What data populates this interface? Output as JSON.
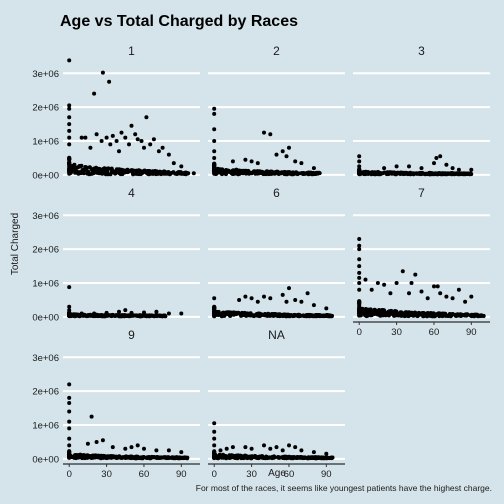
{
  "chart_data": {
    "type": "scatter",
    "title": "Age vs Total Charged by Races",
    "xlabel": "Age",
    "ylabel": "Total Charged",
    "caption": "For most of the races, it seems like youngest patients have the highest charge.",
    "xlim": [
      -5,
      105
    ],
    "ylim": [
      -150000,
      3450000
    ],
    "x_ticks": [
      0,
      30,
      60,
      90
    ],
    "y_ticks": [
      0,
      1000000,
      2000000,
      3000000
    ],
    "y_tick_labels": [
      "0e+00",
      "1e+06",
      "2e+06",
      "3e+06"
    ],
    "grid": "horizontal major lines",
    "facets": [
      {
        "label": "1",
        "cluster": {
          "x_max": 96,
          "y_base": 300000,
          "y_decay": 60
        },
        "points": [
          [
            0,
            3380000
          ],
          [
            0,
            2050000
          ],
          [
            0,
            1950000
          ],
          [
            0,
            1700000
          ],
          [
            0,
            1500000
          ],
          [
            0,
            1300000
          ],
          [
            0,
            1100000
          ],
          [
            0,
            900000
          ],
          [
            20,
            2400000
          ],
          [
            27,
            3020000
          ],
          [
            32,
            2750000
          ],
          [
            10,
            1100000
          ],
          [
            13,
            1100000
          ],
          [
            17,
            800000
          ],
          [
            22,
            1200000
          ],
          [
            26,
            1000000
          ],
          [
            30,
            1100000
          ],
          [
            33,
            900000
          ],
          [
            35,
            1150000
          ],
          [
            38,
            1000000
          ],
          [
            40,
            700000
          ],
          [
            42,
            1250000
          ],
          [
            45,
            1100000
          ],
          [
            48,
            900000
          ],
          [
            50,
            1450000
          ],
          [
            53,
            1200000
          ],
          [
            55,
            1050000
          ],
          [
            58,
            1000000
          ],
          [
            60,
            800000
          ],
          [
            62,
            1700000
          ],
          [
            65,
            900000
          ],
          [
            68,
            1050000
          ],
          [
            72,
            700000
          ],
          [
            75,
            800000
          ],
          [
            80,
            600000
          ],
          [
            84,
            350000
          ],
          [
            90,
            250000
          ],
          [
            100,
            50000
          ]
        ]
      },
      {
        "label": "2",
        "cluster": {
          "x_max": 85,
          "y_base": 180000,
          "y_decay": 60
        },
        "points": [
          [
            0,
            1950000
          ],
          [
            0,
            1800000
          ],
          [
            0,
            1350000
          ],
          [
            0,
            1000000
          ],
          [
            0,
            700000
          ],
          [
            0,
            500000
          ],
          [
            15,
            400000
          ],
          [
            25,
            450000
          ],
          [
            30,
            400000
          ],
          [
            35,
            350000
          ],
          [
            40,
            1250000
          ],
          [
            45,
            1200000
          ],
          [
            50,
            600000
          ],
          [
            55,
            700000
          ],
          [
            58,
            550000
          ],
          [
            60,
            800000
          ],
          [
            65,
            400000
          ],
          [
            70,
            350000
          ],
          [
            80,
            200000
          ]
        ]
      },
      {
        "label": "3",
        "cluster": {
          "x_max": 90,
          "y_base": 80000,
          "y_decay": 80
        },
        "points": [
          [
            0,
            550000
          ],
          [
            0,
            400000
          ],
          [
            0,
            250000
          ],
          [
            20,
            200000
          ],
          [
            30,
            250000
          ],
          [
            40,
            250000
          ],
          [
            50,
            200000
          ],
          [
            60,
            350000
          ],
          [
            62,
            500000
          ],
          [
            65,
            550000
          ],
          [
            70,
            300000
          ],
          [
            75,
            200000
          ],
          [
            80,
            150000
          ],
          [
            90,
            150000
          ]
        ]
      },
      {
        "label": "4",
        "cluster": {
          "x_max": 78,
          "y_base": 60000,
          "y_decay": 80
        },
        "points": [
          [
            0,
            880000
          ],
          [
            0,
            300000
          ],
          [
            0,
            200000
          ],
          [
            10,
            100000
          ],
          [
            20,
            100000
          ],
          [
            30,
            120000
          ],
          [
            40,
            150000
          ],
          [
            45,
            200000
          ],
          [
            50,
            120000
          ],
          [
            60,
            130000
          ],
          [
            70,
            150000
          ],
          [
            80,
            100000
          ],
          [
            90,
            100000
          ]
        ]
      },
      {
        "label": "6",
        "cluster": {
          "x_max": 95,
          "y_base": 150000,
          "y_decay": 60
        },
        "points": [
          [
            0,
            550000
          ],
          [
            0,
            300000
          ],
          [
            20,
            500000
          ],
          [
            25,
            600000
          ],
          [
            30,
            550000
          ],
          [
            35,
            450000
          ],
          [
            40,
            600000
          ],
          [
            45,
            550000
          ],
          [
            55,
            650000
          ],
          [
            58,
            450000
          ],
          [
            60,
            850000
          ],
          [
            65,
            500000
          ],
          [
            70,
            450000
          ],
          [
            75,
            700000
          ],
          [
            80,
            350000
          ],
          [
            90,
            250000
          ]
        ]
      },
      {
        "label": "7",
        "cluster": {
          "x_max": 100,
          "y_base": 250000,
          "y_decay": 60
        },
        "points": [
          [
            0,
            2300000
          ],
          [
            0,
            2100000
          ],
          [
            0,
            2000000
          ],
          [
            0,
            1700000
          ],
          [
            0,
            1500000
          ],
          [
            0,
            1300000
          ],
          [
            0,
            1150000
          ],
          [
            0,
            1000000
          ],
          [
            0,
            800000
          ],
          [
            5,
            1100000
          ],
          [
            10,
            800000
          ],
          [
            15,
            1000000
          ],
          [
            20,
            950000
          ],
          [
            25,
            700000
          ],
          [
            30,
            1000000
          ],
          [
            35,
            1350000
          ],
          [
            40,
            700000
          ],
          [
            42,
            1000000
          ],
          [
            45,
            1250000
          ],
          [
            50,
            750000
          ],
          [
            55,
            550000
          ],
          [
            60,
            900000
          ],
          [
            63,
            900000
          ],
          [
            65,
            700000
          ],
          [
            70,
            600000
          ],
          [
            75,
            550000
          ],
          [
            80,
            800000
          ],
          [
            85,
            450000
          ],
          [
            90,
            600000
          ],
          [
            98,
            50000
          ]
        ]
      },
      {
        "label": "9",
        "cluster": {
          "x_max": 95,
          "y_base": 120000,
          "y_decay": 60
        },
        "points": [
          [
            0,
            2200000
          ],
          [
            0,
            1800000
          ],
          [
            0,
            1650000
          ],
          [
            0,
            1400000
          ],
          [
            0,
            1100000
          ],
          [
            0,
            900000
          ],
          [
            0,
            600000
          ],
          [
            0,
            400000
          ],
          [
            15,
            450000
          ],
          [
            18,
            1250000
          ],
          [
            22,
            500000
          ],
          [
            27,
            550000
          ],
          [
            35,
            350000
          ],
          [
            45,
            300000
          ],
          [
            50,
            350000
          ],
          [
            55,
            400000
          ],
          [
            60,
            300000
          ],
          [
            70,
            250000
          ],
          [
            80,
            250000
          ],
          [
            90,
            200000
          ]
        ]
      },
      {
        "label": "NA",
        "cluster": {
          "x_max": 95,
          "y_base": 120000,
          "y_decay": 60
        },
        "points": [
          [
            0,
            1050000
          ],
          [
            0,
            800000
          ],
          [
            0,
            600000
          ],
          [
            0,
            400000
          ],
          [
            5,
            250000
          ],
          [
            10,
            300000
          ],
          [
            15,
            350000
          ],
          [
            25,
            350000
          ],
          [
            30,
            300000
          ],
          [
            40,
            400000
          ],
          [
            45,
            300000
          ],
          [
            50,
            350000
          ],
          [
            55,
            250000
          ],
          [
            60,
            400000
          ],
          [
            65,
            350000
          ],
          [
            70,
            250000
          ],
          [
            80,
            200000
          ],
          [
            90,
            150000
          ]
        ]
      }
    ]
  }
}
